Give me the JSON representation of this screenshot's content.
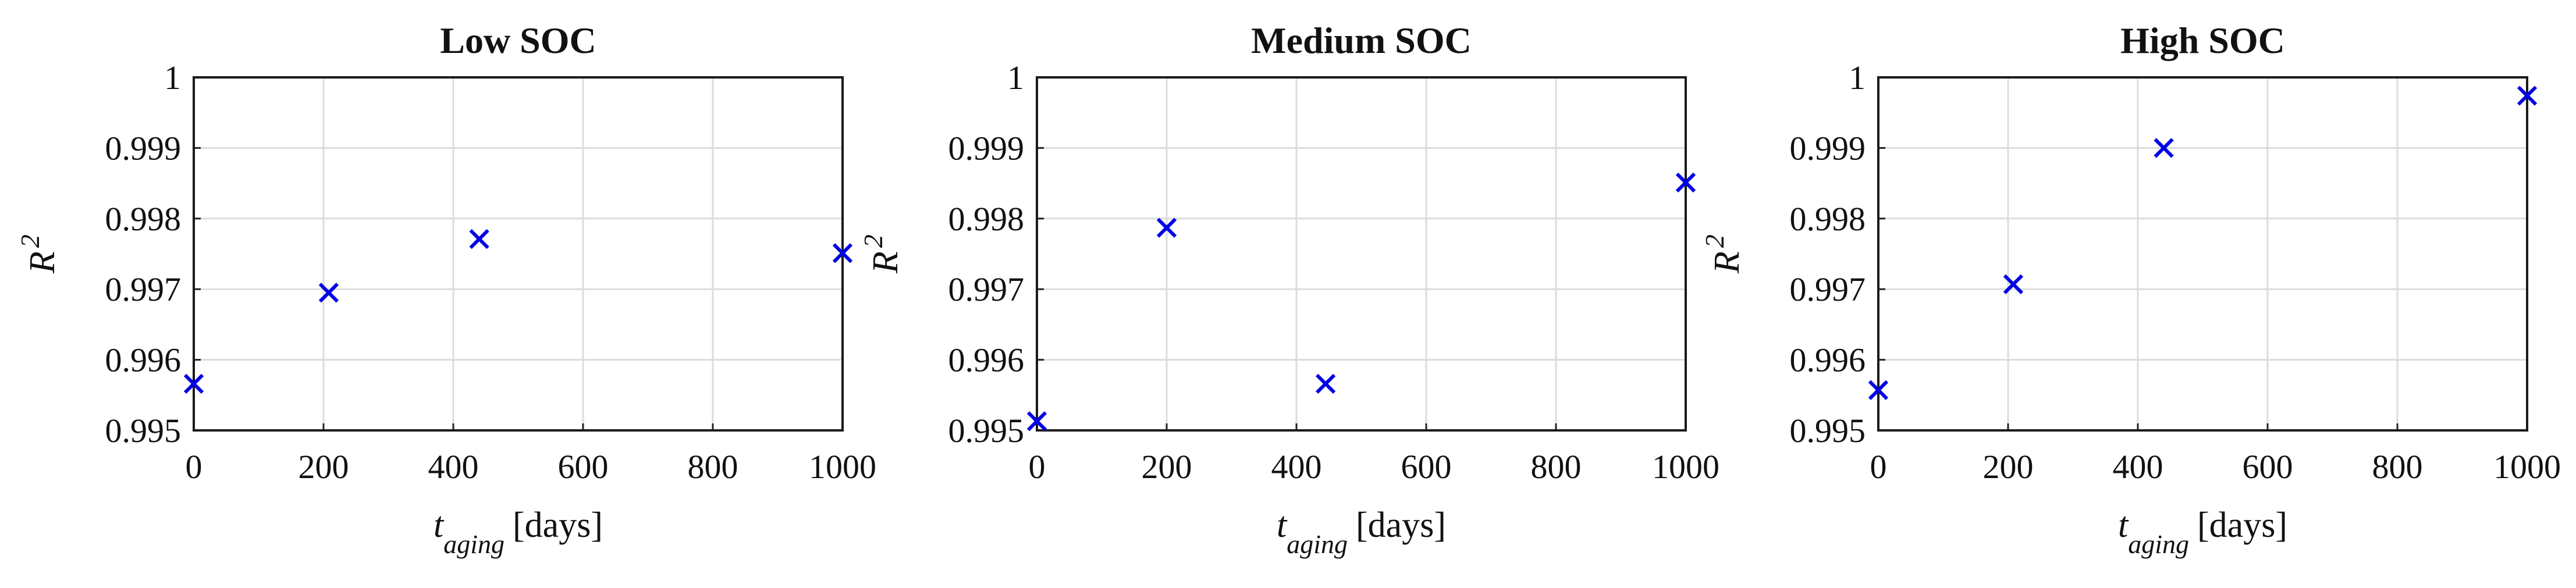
{
  "chart_data": [
    {
      "type": "scatter",
      "title": "Low SOC",
      "xlabel": {
        "symbol": "t",
        "subscript": "aging",
        "unit": "[days]"
      },
      "ylabel": {
        "symbol": "R",
        "superscript": "2"
      },
      "xlim": [
        0,
        1000
      ],
      "ylim": [
        0.995,
        1
      ],
      "xticks": [
        "0",
        "200",
        "400",
        "600",
        "800",
        "1000"
      ],
      "yticks": [
        "0.995",
        "0.996",
        "0.997",
        "0.998",
        "0.999",
        "1"
      ],
      "grid": true,
      "marker": "x",
      "color": "#0000e6",
      "x": [
        0,
        208,
        440,
        1000
      ],
      "y": [
        0.99566,
        0.99695,
        0.99771,
        0.99751
      ]
    },
    {
      "type": "scatter",
      "title": "Medium SOC",
      "xlabel": {
        "symbol": "t",
        "subscript": "aging",
        "unit": "[days]"
      },
      "ylabel": {
        "symbol": "R",
        "superscript": "2"
      },
      "xlim": [
        0,
        1000
      ],
      "ylim": [
        0.995,
        1
      ],
      "xticks": [
        "0",
        "200",
        "400",
        "600",
        "800",
        "1000"
      ],
      "yticks": [
        "0.995",
        "0.996",
        "0.997",
        "0.998",
        "0.999",
        "1"
      ],
      "grid": true,
      "marker": "x",
      "color": "#0000e6",
      "x": [
        0,
        200,
        445,
        1000
      ],
      "y": [
        0.99513,
        0.99787,
        0.99566,
        0.99851
      ]
    },
    {
      "type": "scatter",
      "title": "High SOC",
      "xlabel": {
        "symbol": "t",
        "subscript": "aging",
        "unit": "[days]"
      },
      "ylabel": {
        "symbol": "R",
        "superscript": "2"
      },
      "xlim": [
        0,
        1000
      ],
      "ylim": [
        0.995,
        1
      ],
      "xticks": [
        "0",
        "200",
        "400",
        "600",
        "800",
        "1000"
      ],
      "yticks": [
        "0.995",
        "0.996",
        "0.997",
        "0.998",
        "0.999",
        "1"
      ],
      "grid": true,
      "marker": "x",
      "color": "#0000e6",
      "x": [
        0,
        208,
        440,
        1000
      ],
      "y": [
        0.99557,
        0.99707,
        0.999,
        0.99974
      ]
    }
  ]
}
